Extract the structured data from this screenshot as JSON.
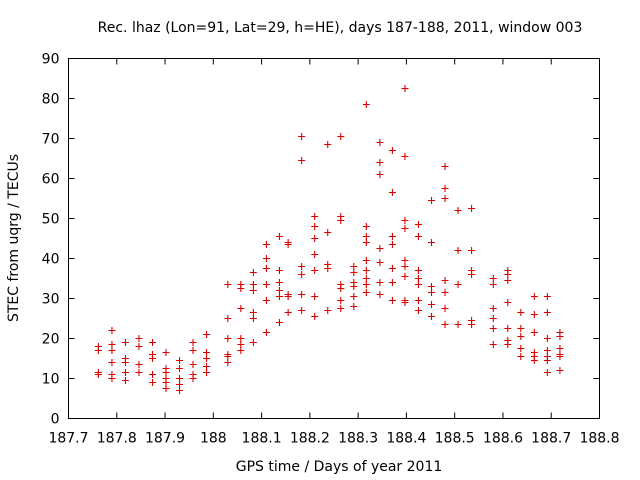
{
  "chart_data": {
    "type": "scatter",
    "title": "Rec. lhaz (Lon=91, Lat=29, h=HE), days 187-188, 2011, window 003",
    "xlabel": "GPS time / Days of year 2011",
    "ylabel": "STEC from uqrg / TECUs",
    "xlim": [
      187.7,
      188.8
    ],
    "ylim": [
      0,
      90
    ],
    "xticks": [
      "187.7",
      "187.8",
      "187.9",
      "188",
      "188.1",
      "188.2",
      "188.3",
      "188.4",
      "188.5",
      "188.6",
      "188.7",
      "188.8"
    ],
    "xtick_values": [
      187.7,
      187.8,
      187.9,
      188.0,
      188.1,
      188.2,
      188.3,
      188.4,
      188.5,
      188.6,
      188.7,
      188.8
    ],
    "yticks": [
      "0",
      "10",
      "20",
      "30",
      "40",
      "50",
      "60",
      "70",
      "80",
      "90"
    ],
    "ytick_values": [
      0,
      10,
      20,
      30,
      40,
      50,
      60,
      70,
      80,
      90
    ],
    "grid": false,
    "marker": "+",
    "color": "#dd0000",
    "series": [
      {
        "points": [
          [
            187.762,
            11
          ],
          [
            187.762,
            11.5
          ],
          [
            187.762,
            17
          ],
          [
            187.762,
            18
          ],
          [
            187.79,
            10
          ],
          [
            187.79,
            11
          ],
          [
            187.79,
            14
          ],
          [
            187.79,
            17
          ],
          [
            187.79,
            18.5
          ],
          [
            187.79,
            22
          ],
          [
            187.818,
            9.5
          ],
          [
            187.818,
            11.5
          ],
          [
            187.818,
            14
          ],
          [
            187.818,
            15
          ],
          [
            187.818,
            19
          ],
          [
            187.846,
            11.5
          ],
          [
            187.846,
            13.5
          ],
          [
            187.846,
            18
          ],
          [
            187.846,
            20
          ],
          [
            187.874,
            9
          ],
          [
            187.874,
            11
          ],
          [
            187.874,
            15
          ],
          [
            187.874,
            16
          ],
          [
            187.874,
            19
          ],
          [
            187.902,
            7.5
          ],
          [
            187.902,
            9
          ],
          [
            187.902,
            10
          ],
          [
            187.902,
            11.5
          ],
          [
            187.902,
            12.5
          ],
          [
            187.902,
            16.5
          ],
          [
            187.93,
            7
          ],
          [
            187.93,
            8.5
          ],
          [
            187.93,
            10
          ],
          [
            187.93,
            12.5
          ],
          [
            187.93,
            14.5
          ],
          [
            187.958,
            10
          ],
          [
            187.958,
            11
          ],
          [
            187.958,
            13.5
          ],
          [
            187.958,
            17
          ],
          [
            187.958,
            19
          ],
          [
            187.986,
            11.5
          ],
          [
            187.986,
            13
          ],
          [
            187.986,
            15
          ],
          [
            187.986,
            16.5
          ],
          [
            187.986,
            21
          ],
          [
            188.03,
            14
          ],
          [
            188.03,
            15.5
          ],
          [
            188.03,
            16
          ],
          [
            188.03,
            20
          ],
          [
            188.03,
            25
          ],
          [
            188.03,
            33.5
          ],
          [
            188.057,
            17
          ],
          [
            188.057,
            18.5
          ],
          [
            188.057,
            20
          ],
          [
            188.057,
            27.5
          ],
          [
            188.057,
            32.5
          ],
          [
            188.057,
            33.5
          ],
          [
            188.083,
            19
          ],
          [
            188.083,
            25
          ],
          [
            188.083,
            26.5
          ],
          [
            188.083,
            32
          ],
          [
            188.083,
            33.5
          ],
          [
            188.083,
            36.5
          ],
          [
            188.11,
            21.5
          ],
          [
            188.11,
            29.5
          ],
          [
            188.11,
            33.5
          ],
          [
            188.11,
            37.5
          ],
          [
            188.11,
            40
          ],
          [
            188.11,
            43.5
          ],
          [
            188.137,
            24
          ],
          [
            188.137,
            30.5
          ],
          [
            188.137,
            32
          ],
          [
            188.137,
            34
          ],
          [
            188.137,
            37
          ],
          [
            188.137,
            45.5
          ],
          [
            188.155,
            26.5
          ],
          [
            188.155,
            30.5
          ],
          [
            188.155,
            31
          ],
          [
            188.155,
            43.5
          ],
          [
            188.155,
            44
          ],
          [
            188.183,
            27
          ],
          [
            188.183,
            31
          ],
          [
            188.183,
            36
          ],
          [
            188.183,
            38
          ],
          [
            188.183,
            64.5
          ],
          [
            188.183,
            70.5
          ],
          [
            188.21,
            25.5
          ],
          [
            188.21,
            30.5
          ],
          [
            188.21,
            37
          ],
          [
            188.21,
            41
          ],
          [
            188.21,
            45
          ],
          [
            188.21,
            48
          ],
          [
            188.21,
            50.5
          ],
          [
            188.237,
            27
          ],
          [
            188.237,
            37.5
          ],
          [
            188.237,
            38.5
          ],
          [
            188.237,
            46.5
          ],
          [
            188.237,
            68.5
          ],
          [
            188.264,
            27.5
          ],
          [
            188.264,
            29.5
          ],
          [
            188.264,
            32.5
          ],
          [
            188.264,
            33.5
          ],
          [
            188.264,
            49.5
          ],
          [
            188.264,
            50.5
          ],
          [
            188.264,
            70.5
          ],
          [
            188.291,
            28
          ],
          [
            188.291,
            30.5
          ],
          [
            188.291,
            33
          ],
          [
            188.291,
            34
          ],
          [
            188.291,
            36.5
          ],
          [
            188.291,
            38
          ],
          [
            188.317,
            31.5
          ],
          [
            188.317,
            33.5
          ],
          [
            188.317,
            35
          ],
          [
            188.317,
            37
          ],
          [
            188.317,
            39.5
          ],
          [
            188.317,
            44
          ],
          [
            188.317,
            45.5
          ],
          [
            188.317,
            48
          ],
          [
            188.317,
            78.5
          ],
          [
            188.345,
            31
          ],
          [
            188.345,
            34
          ],
          [
            188.345,
            39
          ],
          [
            188.345,
            42.5
          ],
          [
            188.345,
            61
          ],
          [
            188.345,
            64
          ],
          [
            188.345,
            69
          ],
          [
            188.371,
            29.5
          ],
          [
            188.371,
            34
          ],
          [
            188.371,
            37.5
          ],
          [
            188.371,
            43.5
          ],
          [
            188.371,
            45.5
          ],
          [
            188.371,
            56.5
          ],
          [
            188.371,
            67
          ],
          [
            188.397,
            29
          ],
          [
            188.397,
            29.5
          ],
          [
            188.397,
            35.5
          ],
          [
            188.397,
            38
          ],
          [
            188.397,
            39.5
          ],
          [
            188.397,
            47.5
          ],
          [
            188.397,
            49.5
          ],
          [
            188.397,
            65.5
          ],
          [
            188.397,
            82.5
          ],
          [
            188.425,
            27
          ],
          [
            188.425,
            29.5
          ],
          [
            188.425,
            33.5
          ],
          [
            188.425,
            35
          ],
          [
            188.425,
            37
          ],
          [
            188.425,
            45.5
          ],
          [
            188.425,
            48.5
          ],
          [
            188.452,
            25.5
          ],
          [
            188.452,
            28.5
          ],
          [
            188.452,
            31.5
          ],
          [
            188.452,
            33
          ],
          [
            188.452,
            44
          ],
          [
            188.452,
            54.5
          ],
          [
            188.48,
            23.5
          ],
          [
            188.48,
            27.5
          ],
          [
            188.48,
            31.5
          ],
          [
            188.48,
            34.5
          ],
          [
            188.48,
            55
          ],
          [
            188.48,
            57.5
          ],
          [
            188.48,
            63
          ],
          [
            188.507,
            23.5
          ],
          [
            188.507,
            33.5
          ],
          [
            188.507,
            42
          ],
          [
            188.507,
            52
          ],
          [
            188.535,
            23.5
          ],
          [
            188.535,
            24.5
          ],
          [
            188.535,
            36
          ],
          [
            188.535,
            37
          ],
          [
            188.535,
            42
          ],
          [
            188.535,
            52.5
          ],
          [
            188.58,
            18.5
          ],
          [
            188.58,
            22.5
          ],
          [
            188.58,
            25
          ],
          [
            188.58,
            27.5
          ],
          [
            188.58,
            33.5
          ],
          [
            188.58,
            35
          ],
          [
            188.61,
            18.5
          ],
          [
            188.61,
            19.5
          ],
          [
            188.61,
            22.5
          ],
          [
            188.61,
            29
          ],
          [
            188.61,
            34.5
          ],
          [
            188.61,
            36
          ],
          [
            188.61,
            37
          ],
          [
            188.637,
            15.5
          ],
          [
            188.637,
            17.5
          ],
          [
            188.637,
            20.5
          ],
          [
            188.637,
            22.5
          ],
          [
            188.637,
            26.5
          ],
          [
            188.665,
            14.5
          ],
          [
            188.665,
            15.5
          ],
          [
            188.665,
            16.5
          ],
          [
            188.665,
            21.5
          ],
          [
            188.665,
            26
          ],
          [
            188.665,
            30.5
          ],
          [
            188.692,
            11.5
          ],
          [
            188.692,
            14.5
          ],
          [
            188.692,
            15.5
          ],
          [
            188.692,
            17
          ],
          [
            188.692,
            20
          ],
          [
            188.692,
            26.5
          ],
          [
            188.692,
            30.5
          ],
          [
            188.718,
            12
          ],
          [
            188.718,
            15.5
          ],
          [
            188.718,
            16
          ],
          [
            188.718,
            17.5
          ],
          [
            188.718,
            20.5
          ],
          [
            188.718,
            21.5
          ]
        ]
      }
    ]
  }
}
